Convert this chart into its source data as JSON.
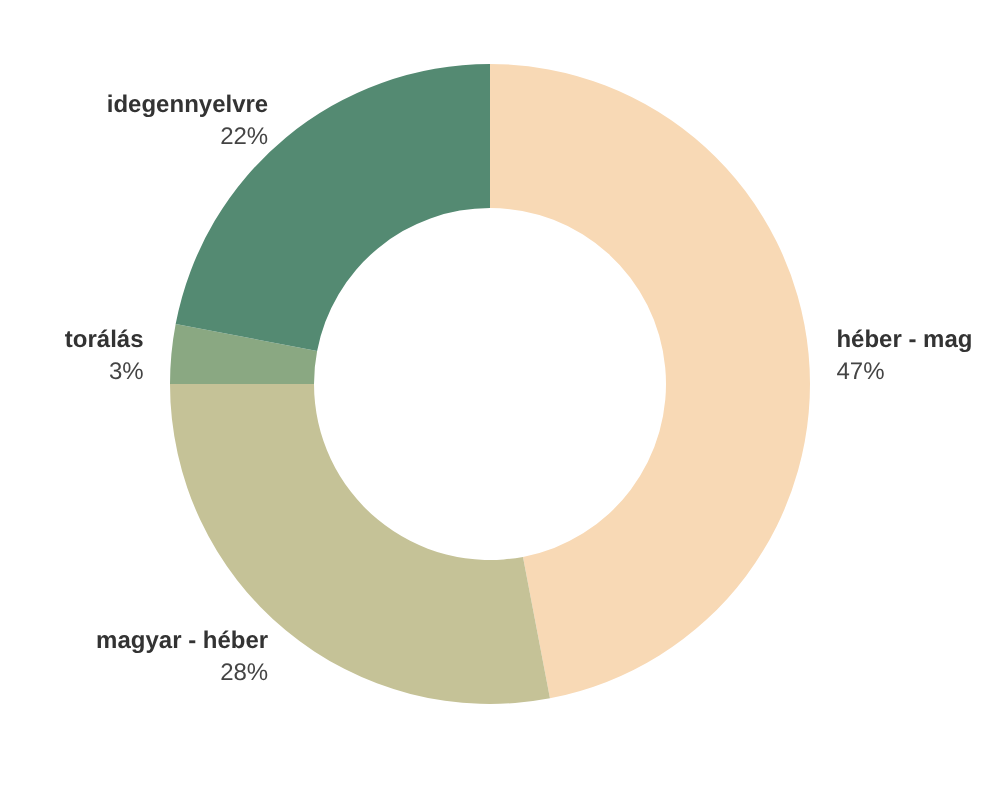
{
  "chart_data": {
    "type": "donut",
    "categories": [
      "héber - mag",
      "magyar - héber",
      "torálás",
      "idegennyelvre"
    ],
    "values": [
      47,
      28,
      3,
      22
    ],
    "colors": [
      "#f8d9b5",
      "#c5c297",
      "#8aa882",
      "#548a72"
    ],
    "value_labels": [
      "47%",
      "28%",
      "3%",
      "22%"
    ]
  }
}
